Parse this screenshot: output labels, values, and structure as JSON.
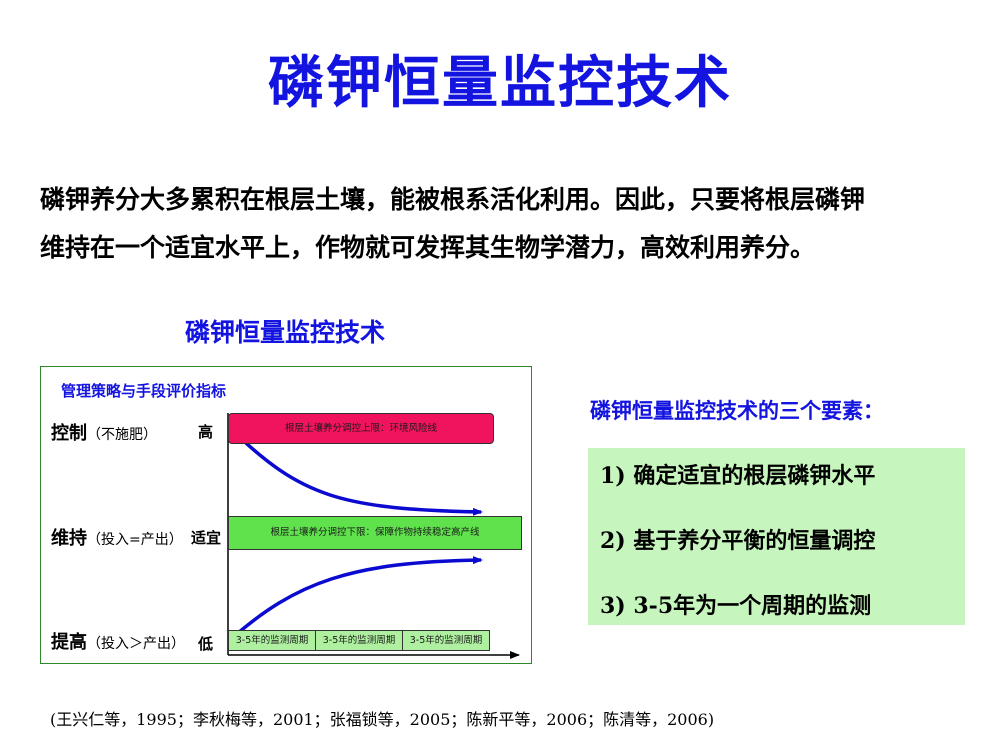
{
  "title": "磷钾恒量监控技术",
  "intro": {
    "line1": "磷钾养分大多累积在根层土壤，能被根系活化利用。因此，只要将根层磷钾",
    "line2": "维持在一个适宜水平上，作物就可发挥其生物学潜力，高效利用养分。"
  },
  "diagram": {
    "title": "磷钾恒量监控技术",
    "management_label": "管理策略与手段评价指标",
    "levels": [
      {
        "label": "控制",
        "detail": "（不施肥）",
        "tag": "高"
      },
      {
        "label": "维持",
        "detail": "（投入=产出）",
        "tag": "适宜"
      },
      {
        "label": "提高",
        "detail": "（投入＞产出）",
        "tag": "低"
      }
    ],
    "upper_band": "根层土壤养分调控上限：环境风险线",
    "lower_band": "根层土壤养分调控下限：保障作物持续稳定高产线",
    "periods": [
      "3-5年的监测周期",
      "3-5年的监测周期",
      "3-5年的监测周期"
    ],
    "colors": {
      "upper_band": "#f0135e",
      "lower_band": "#5fe24c",
      "arrows": "#0a0ad0",
      "periods": "#aef0a0"
    }
  },
  "elements": {
    "title": "磷钾恒量监控技术的三个要素：",
    "items": [
      "1) 确定适宜的根层磷钾水平",
      "2) 基于养分平衡的恒量调控",
      "3) 3-5年为一个周期的监测"
    ]
  },
  "citation": "(王兴仁等，1995；李秋梅等，2001；张福锁等，2005；陈新平等，2006；陈清等，2006)"
}
